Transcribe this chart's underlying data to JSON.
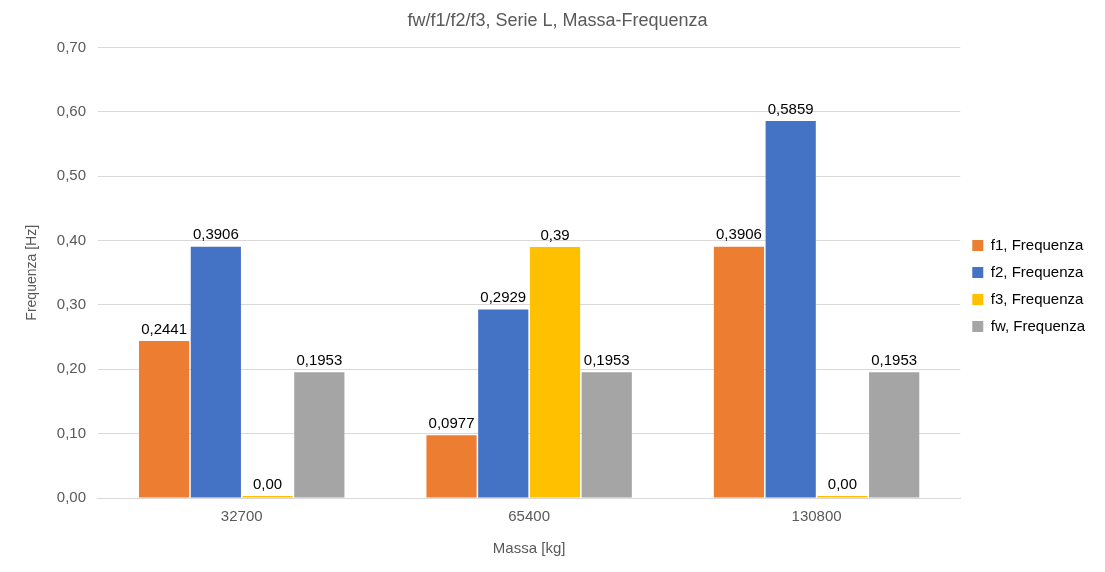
{
  "chart_data": {
    "type": "bar",
    "title": "fw/f1/f2/f3, Serie L, Massa-Frequenza",
    "xlabel": "Massa [kg]",
    "ylabel": "Frequenza [Hz]",
    "categories": [
      "32700",
      "65400",
      "130800"
    ],
    "series": [
      {
        "name": "f1, Frequenza",
        "color": "#ed7d31",
        "values": [
          0.2441,
          0.0977,
          0.3906
        ],
        "value_labels": [
          "0,2441",
          "0,0977",
          "0,3906"
        ]
      },
      {
        "name": "f2, Frequenza",
        "color": "#4472c4",
        "values": [
          0.3906,
          0.2929,
          0.5859
        ],
        "value_labels": [
          "0,3906",
          "0,2929",
          "0,5859"
        ]
      },
      {
        "name": "f3, Frequenza",
        "color": "#ffc000",
        "values": [
          0,
          0.39,
          0
        ],
        "value_labels": [
          "0,00",
          "0,39",
          "0,00"
        ]
      },
      {
        "name": "fw, Frequenza",
        "color": "#a5a5a5",
        "values": [
          0.1953,
          0.1953,
          0.1953
        ],
        "value_labels": [
          "0,1953",
          "0,1953",
          "0,1953"
        ]
      }
    ],
    "ylim": [
      0,
      0.7
    ],
    "yticks": [
      {
        "value": 0,
        "label": "0,00"
      },
      {
        "value": 0.1,
        "label": "0,10"
      },
      {
        "value": 0.2,
        "label": "0,20"
      },
      {
        "value": 0.3,
        "label": "0,30"
      },
      {
        "value": 0.4,
        "label": "0,40"
      },
      {
        "value": 0.5,
        "label": "0,50"
      },
      {
        "value": 0.6,
        "label": "0,60"
      },
      {
        "value": 0.7,
        "label": "0,70"
      }
    ],
    "grid": "y",
    "legend": "right"
  }
}
